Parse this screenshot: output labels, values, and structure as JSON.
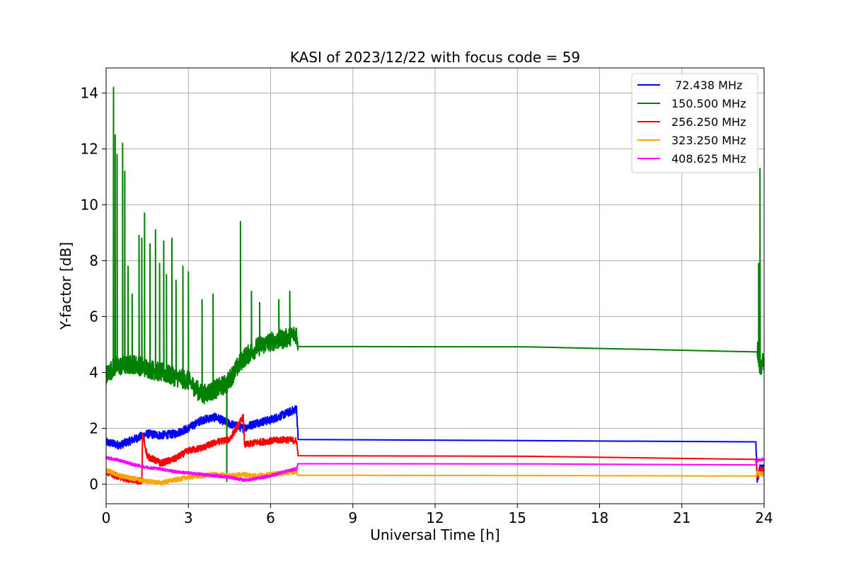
{
  "chart_data": {
    "type": "line",
    "title": "KASI of 2023/12/22 with focus code = 59",
    "xlabel": "Universal Time [h]",
    "ylabel": "Y-factor [dB]",
    "xlim": [
      0,
      24
    ],
    "ylim": [
      -0.7,
      14.9
    ],
    "xticks": [
      0,
      3,
      6,
      9,
      12,
      15,
      18,
      21,
      24
    ],
    "yticks": [
      0,
      2,
      4,
      6,
      8,
      10,
      12,
      14
    ],
    "grid": true,
    "legend_position": "top-right",
    "series": [
      {
        "name": " 72.438 MHz",
        "color": "#0000ff",
        "points": [
          [
            0,
            1.5
          ],
          [
            0.5,
            1.4
          ],
          [
            1,
            1.6
          ],
          [
            1.5,
            1.8
          ],
          [
            2,
            1.75
          ],
          [
            2.5,
            1.8
          ],
          [
            3,
            2.0
          ],
          [
            3.5,
            2.3
          ],
          [
            4,
            2.4
          ],
          [
            4.4,
            2.2
          ],
          [
            5,
            2.0
          ],
          [
            5.5,
            2.2
          ],
          [
            6,
            2.3
          ],
          [
            6.5,
            2.5
          ],
          [
            6.95,
            2.7
          ],
          [
            7.0,
            1.6
          ],
          [
            23.7,
            1.52
          ],
          [
            23.75,
            0.1
          ],
          [
            23.85,
            0.6
          ],
          [
            24,
            0.55
          ]
        ],
        "noise": 0.15
      },
      {
        "name": "150.500 MHz",
        "color": "#008000",
        "points": [
          [
            0,
            3.9
          ],
          [
            0.3,
            4.2
          ],
          [
            1,
            4.3
          ],
          [
            2,
            4.0
          ],
          [
            3,
            3.7
          ],
          [
            3.5,
            3.2
          ],
          [
            4,
            3.4
          ],
          [
            4.4,
            3.6
          ],
          [
            5,
            4.5
          ],
          [
            5.5,
            4.9
          ],
          [
            6,
            5.1
          ],
          [
            6.5,
            5.2
          ],
          [
            6.95,
            5.4
          ],
          [
            7.0,
            4.93
          ],
          [
            23.75,
            4.9
          ],
          [
            23.85,
            4.2
          ],
          [
            24,
            4.4
          ]
        ],
        "noise": 0.35,
        "spikes": [
          [
            0.27,
            14.2
          ],
          [
            0.33,
            12.5
          ],
          [
            0.4,
            11.8
          ],
          [
            0.6,
            12.2
          ],
          [
            0.68,
            11.2
          ],
          [
            0.8,
            7.8
          ],
          [
            0.95,
            6.8
          ],
          [
            1.2,
            8.9
          ],
          [
            1.3,
            8.8
          ],
          [
            1.4,
            9.7
          ],
          [
            1.6,
            8.6
          ],
          [
            1.8,
            9.1
          ],
          [
            1.95,
            7.9
          ],
          [
            2.1,
            8.7
          ],
          [
            2.2,
            7.5
          ],
          [
            2.4,
            8.8
          ],
          [
            2.55,
            7.3
          ],
          [
            2.8,
            7.8
          ],
          [
            3.0,
            7.6
          ],
          [
            3.5,
            6.6
          ],
          [
            3.9,
            6.8
          ],
          [
            4.9,
            9.4
          ],
          [
            5.3,
            6.9
          ],
          [
            5.6,
            6.5
          ],
          [
            6.3,
            6.6
          ],
          [
            6.7,
            6.9
          ],
          [
            23.85,
            11.3
          ],
          [
            23.8,
            7.9
          ]
        ],
        "dips": [
          [
            4.4,
            0.1
          ]
        ]
      },
      {
        "name": "256.250 MHz",
        "color": "#ff0000",
        "points": [
          [
            0,
            0.45
          ],
          [
            0.5,
            0.25
          ],
          [
            1.0,
            0.15
          ],
          [
            1.3,
            0.1
          ],
          [
            1.33,
            1.8
          ],
          [
            1.5,
            1.0
          ],
          [
            2,
            0.75
          ],
          [
            2.5,
            0.9
          ],
          [
            3,
            1.2
          ],
          [
            3.5,
            1.3
          ],
          [
            4,
            1.5
          ],
          [
            4.5,
            1.6
          ],
          [
            5.0,
            2.4
          ],
          [
            5.05,
            1.4
          ],
          [
            5.5,
            1.5
          ],
          [
            6,
            1.55
          ],
          [
            6.5,
            1.6
          ],
          [
            6.95,
            1.55
          ],
          [
            7.0,
            1.02
          ],
          [
            23.7,
            0.98
          ],
          [
            23.75,
            0.2
          ],
          [
            23.85,
            0.5
          ],
          [
            24,
            0.5
          ]
        ],
        "noise": 0.12
      },
      {
        "name": "323.250 MHz",
        "color": "#ffa500",
        "points": [
          [
            0,
            0.5
          ],
          [
            0.5,
            0.3
          ],
          [
            1,
            0.2
          ],
          [
            1.5,
            0.1
          ],
          [
            2,
            0.05
          ],
          [
            2.5,
            0.15
          ],
          [
            3,
            0.25
          ],
          [
            3.5,
            0.3
          ],
          [
            4,
            0.35
          ],
          [
            4.5,
            0.3
          ],
          [
            5,
            0.35
          ],
          [
            5.5,
            0.3
          ],
          [
            6,
            0.35
          ],
          [
            6.5,
            0.4
          ],
          [
            6.95,
            0.45
          ],
          [
            7.0,
            0.32
          ],
          [
            23.7,
            0.3
          ],
          [
            23.75,
            0.4
          ],
          [
            24,
            0.35
          ]
        ],
        "noise": 0.08
      },
      {
        "name": "408.625 MHz",
        "color": "#ff00ff",
        "points": [
          [
            0,
            0.95
          ],
          [
            0.5,
            0.85
          ],
          [
            1,
            0.7
          ],
          [
            1.5,
            0.6
          ],
          [
            2,
            0.55
          ],
          [
            2.5,
            0.45
          ],
          [
            3,
            0.4
          ],
          [
            3.5,
            0.35
          ],
          [
            4,
            0.3
          ],
          [
            4.5,
            0.25
          ],
          [
            5,
            0.15
          ],
          [
            5.5,
            0.2
          ],
          [
            6,
            0.3
          ],
          [
            6.5,
            0.45
          ],
          [
            6.95,
            0.55
          ],
          [
            7.0,
            0.73
          ],
          [
            23.7,
            0.72
          ],
          [
            23.75,
            0.85
          ],
          [
            24,
            0.9
          ]
        ],
        "noise": 0.05
      }
    ]
  }
}
